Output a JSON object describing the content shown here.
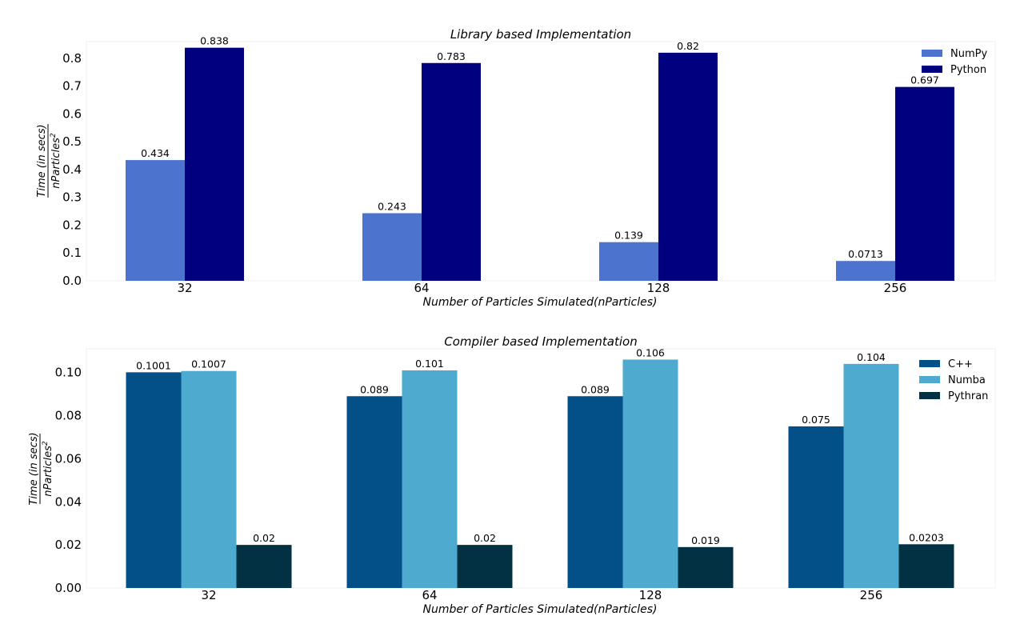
{
  "chart_data": [
    {
      "type": "bar",
      "title": "Library based Implementation",
      "xlabel": "Number of Particles Simulated(nParticles)",
      "ylabel_numerator": "Time (in secs)",
      "ylabel_denominator": "nParticles",
      "ylabel_denominator_exp": "2",
      "categories": [
        "32",
        "64",
        "128",
        "256"
      ],
      "ylim": [
        0,
        0.86
      ],
      "yticks": [
        0.0,
        0.1,
        0.2,
        0.3,
        0.4,
        0.5,
        0.6,
        0.7,
        0.8
      ],
      "ytick_labels": [
        "0.0",
        "0.1",
        "0.2",
        "0.3",
        "0.4",
        "0.5",
        "0.6",
        "0.7",
        "0.8"
      ],
      "grid": false,
      "legend_position": "top-right",
      "series": [
        {
          "name": "NumPy",
          "color": "#4c74cf",
          "values": [
            0.434,
            0.243,
            0.139,
            0.0713
          ],
          "labels": [
            "0.434",
            "0.243",
            "0.139",
            "0.0713"
          ]
        },
        {
          "name": "Python",
          "color": "#01007e",
          "values": [
            0.838,
            0.783,
            0.82,
            0.697
          ],
          "labels": [
            "0.838",
            "0.783",
            "0.82",
            "0.697"
          ]
        }
      ]
    },
    {
      "type": "bar",
      "title": "Compiler based Implementation",
      "xlabel": "Number of Particles Simulated(nParticles)",
      "ylabel_numerator": "Time (in secs)",
      "ylabel_denominator": "nParticles",
      "ylabel_denominator_exp": "2",
      "categories": [
        "32",
        "64",
        "128",
        "256"
      ],
      "ylim": [
        0,
        0.111
      ],
      "yticks": [
        0.0,
        0.02,
        0.04,
        0.06,
        0.08,
        0.1
      ],
      "ytick_labels": [
        "0.00",
        "0.02",
        "0.04",
        "0.06",
        "0.08",
        "0.10"
      ],
      "grid": false,
      "legend_position": "top-right",
      "series": [
        {
          "name": "C++",
          "color": "#034f87",
          "values": [
            0.1001,
            0.089,
            0.089,
            0.075
          ],
          "labels": [
            "0.1001",
            "0.089",
            "0.089",
            "0.075"
          ]
        },
        {
          "name": "Numba",
          "color": "#4eaacf",
          "values": [
            0.1007,
            0.101,
            0.106,
            0.104
          ],
          "labels": [
            "0.1007",
            "0.101",
            "0.106",
            "0.104"
          ]
        },
        {
          "name": "Pythran",
          "color": "#023143",
          "values": [
            0.02,
            0.02,
            0.019,
            0.0203
          ],
          "labels": [
            "0.02",
            "0.02",
            "0.019",
            "0.0203"
          ]
        }
      ]
    }
  ]
}
